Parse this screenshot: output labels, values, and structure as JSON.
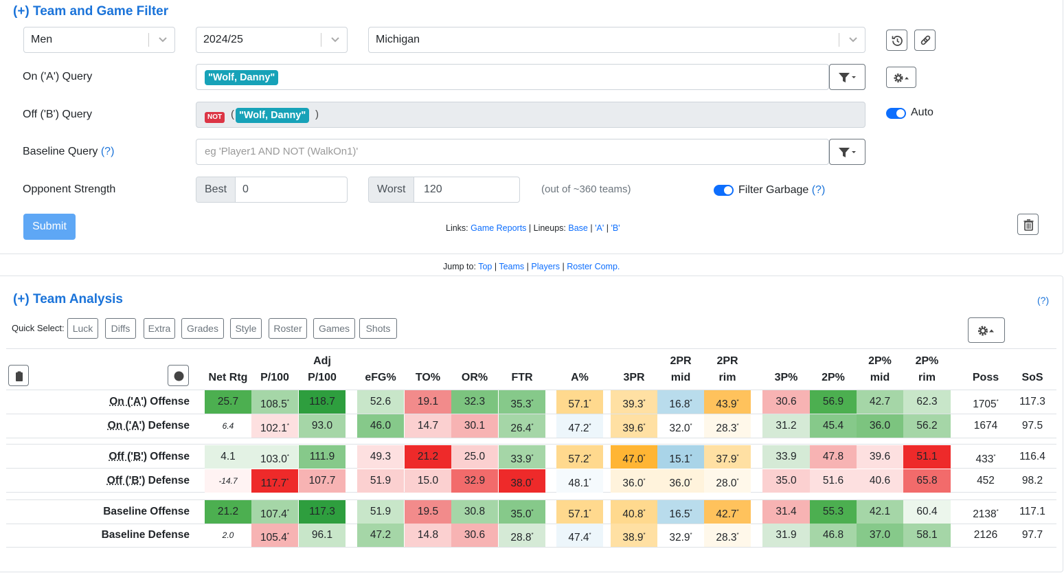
{
  "filter": {
    "title": "(+) Team and Game Filter",
    "gender": "Men",
    "season": "2024/25",
    "team": "Michigan",
    "on_query_label": "On ('A') Query",
    "on_query_chip": "\"Wolf, Danny\"",
    "off_query_label": "Off ('B') Query",
    "off_query_not": "NOT",
    "off_query_open": "(",
    "off_query_chip": "\"Wolf, Danny\"",
    "off_query_close": ")",
    "auto_label": "Auto",
    "baseline_label": "Baseline Query",
    "help": "(?)",
    "baseline_placeholder": "eg 'Player1 AND NOT (WalkOn1)'",
    "opp_label": "Opponent Strength",
    "best_label": "Best",
    "best_value": "0",
    "worst_label": "Worst",
    "worst_value": "120",
    "out_of": "(out of ~360 teams)",
    "filter_garbage": "Filter Garbage",
    "submit": "Submit",
    "links_prefix": "Links:",
    "game_reports": "Game Reports",
    "lineups_prefix": "| Lineups:",
    "base": "Base",
    "a": "'A'",
    "b": "'B'",
    "bar": "|"
  },
  "jump": {
    "prefix": "Jump to:",
    "top": "Top",
    "teams": "Teams",
    "players": "Players",
    "roster": "Roster Comp.",
    "bar": "|"
  },
  "analysis": {
    "title": "(+) Team Analysis",
    "help": "(?)",
    "quick_select": "Quick Select:",
    "buttons": [
      "Luck",
      "Diffs",
      "Extra",
      "Grades",
      "Style",
      "Roster",
      "Games",
      "Shots"
    ]
  },
  "table": {
    "headers": [
      {
        "top": "",
        "bottom": "Net Rtg"
      },
      {
        "top": "",
        "bottom": "P/100"
      },
      {
        "top": "Adj",
        "bottom": "P/100"
      },
      {
        "top": "",
        "bottom": "eFG%"
      },
      {
        "top": "",
        "bottom": "TO%"
      },
      {
        "top": "",
        "bottom": "OR%"
      },
      {
        "top": "",
        "bottom": "FTR"
      },
      {
        "top": "",
        "bottom": "A%"
      },
      {
        "top": "",
        "bottom": "3PR"
      },
      {
        "top": "2PR",
        "bottom": "mid"
      },
      {
        "top": "2PR",
        "bottom": "rim"
      },
      {
        "top": "",
        "bottom": "3P%"
      },
      {
        "top": "",
        "bottom": "2P%"
      },
      {
        "top": "2P%",
        "bottom": "mid"
      },
      {
        "top": "2P%",
        "bottom": "rim"
      },
      {
        "top": "",
        "bottom": "Poss"
      },
      {
        "top": "",
        "bottom": "SoS"
      }
    ],
    "rows": [
      {
        "label_pre": "",
        "label_u": "On ('A')",
        "label_post": " Offense",
        "cells": [
          {
            "v": "25.7",
            "c": "#4caf50"
          },
          {
            "v": "108.5",
            "s": "*",
            "c": "#a5d6a7"
          },
          {
            "v": "118.7",
            "c": "#2e9e3e"
          },
          {
            "v": "52.6",
            "c": "#c8e6c9"
          },
          {
            "v": "19.1",
            "c": "#f28b8b"
          },
          {
            "v": "32.3",
            "c": "#7cc47f"
          },
          {
            "v": "35.3",
            "s": "*",
            "c": "#86c98a"
          },
          {
            "v": "57.1",
            "s": "*",
            "c": "#ffd98e"
          },
          {
            "v": "39.3",
            "s": "*",
            "c": "#ffe0a3"
          },
          {
            "v": "16.8",
            "s": "*",
            "c": "#b9dcec"
          },
          {
            "v": "43.9",
            "s": "*",
            "c": "#ffc25c"
          },
          {
            "v": "30.6",
            "c": "#f7b3b3"
          },
          {
            "v": "56.9",
            "c": "#4caf50"
          },
          {
            "v": "42.7",
            "c": "#a5d6a7"
          },
          {
            "v": "62.3",
            "c": "#c8e6c9"
          },
          {
            "v": "1705",
            "s": "*",
            "c": ""
          },
          {
            "v": "117.3",
            "c": ""
          }
        ]
      },
      {
        "label_pre": "",
        "label_u": "On ('A')",
        "label_post": " Defense",
        "cells": [
          {
            "v": "6.4",
            "c": "",
            "small": true
          },
          {
            "v": "102.1",
            "s": "*",
            "c": "#fde0e0"
          },
          {
            "v": "93.0",
            "c": "#a5d6a7"
          },
          {
            "v": "46.0",
            "c": "#86c98a"
          },
          {
            "v": "14.7",
            "c": "#fbd0d0"
          },
          {
            "v": "30.1",
            "c": "#f7b3b3"
          },
          {
            "v": "26.4",
            "s": "*",
            "c": "#a5d6a7"
          },
          {
            "v": "47.2",
            "s": "*",
            "c": "#edf6fb"
          },
          {
            "v": "39.6",
            "s": "*",
            "c": "#ffe0a3"
          },
          {
            "v": "32.0",
            "s": "*",
            "c": ""
          },
          {
            "v": "28.3",
            "s": "*",
            "c": "#fff8ea"
          },
          {
            "v": "31.2",
            "c": "#d5ead6"
          },
          {
            "v": "45.4",
            "c": "#86c98a"
          },
          {
            "v": "36.0",
            "c": "#7cc47f"
          },
          {
            "v": "56.2",
            "c": "#a5d6a7"
          },
          {
            "v": "1674",
            "c": ""
          },
          {
            "v": "97.5",
            "c": ""
          }
        ]
      },
      {
        "label_pre": "",
        "label_u": "Off ('B')",
        "label_post": " Offense",
        "cells": [
          {
            "v": "4.1",
            "c": "#e3f2e4"
          },
          {
            "v": "103.0",
            "s": "*",
            "c": "#e3f2e4"
          },
          {
            "v": "111.9",
            "c": "#86c98a"
          },
          {
            "v": "49.3",
            "c": "#fde0e0"
          },
          {
            "v": "21.2",
            "c": "#ee2a2a"
          },
          {
            "v": "25.0",
            "c": "#fbd0d0"
          },
          {
            "v": "33.9",
            "s": "*",
            "c": "#a5d6a7"
          },
          {
            "v": "57.2",
            "s": "*",
            "c": "#ffd98e"
          },
          {
            "v": "47.0",
            "s": "*",
            "c": "#ffb534"
          },
          {
            "v": "15.1",
            "s": "*",
            "c": "#a9d4e8"
          },
          {
            "v": "37.9",
            "s": "*",
            "c": "#ffe0a3"
          },
          {
            "v": "33.9",
            "c": "#d5ead6"
          },
          {
            "v": "47.8",
            "c": "#f7b3b3"
          },
          {
            "v": "39.6",
            "c": "#fde0e0"
          },
          {
            "v": "51.1",
            "c": "#ee2a2a"
          },
          {
            "v": "433",
            "s": "*",
            "c": ""
          },
          {
            "v": "116.4",
            "c": ""
          }
        ]
      },
      {
        "label_pre": "",
        "label_u": "Off ('B')",
        "label_post": " Defense",
        "cells": [
          {
            "v": "-14.7",
            "c": "#fff3f3",
            "small": true
          },
          {
            "v": "117.7",
            "s": "*",
            "c": "#ee2a2a"
          },
          {
            "v": "107.7",
            "c": "#f7b3b3"
          },
          {
            "v": "51.9",
            "c": "#fbd0d0"
          },
          {
            "v": "15.0",
            "c": "#fbd0d0"
          },
          {
            "v": "32.9",
            "c": "#f26b6b"
          },
          {
            "v": "38.0",
            "s": "*",
            "c": "#ee2a2a"
          },
          {
            "v": "48.1",
            "s": "*",
            "c": "#f5fafd"
          },
          {
            "v": "36.0",
            "s": "*",
            "c": "#fff3dc"
          },
          {
            "v": "36.0",
            "s": "*",
            "c": "#fff3dc"
          },
          {
            "v": "28.0",
            "s": "*",
            "c": "#fff8ea"
          },
          {
            "v": "35.0",
            "c": "#fbd0d0"
          },
          {
            "v": "51.6",
            "c": "#fde0e0"
          },
          {
            "v": "40.6",
            "c": "#fde0e0"
          },
          {
            "v": "65.8",
            "c": "#f26b6b"
          },
          {
            "v": "452",
            "c": ""
          },
          {
            "v": "98.2",
            "c": ""
          }
        ]
      },
      {
        "label_pre": "Baseline",
        "label_u": "",
        "label_post": " Offense",
        "cells": [
          {
            "v": "21.2",
            "c": "#4caf50"
          },
          {
            "v": "107.4",
            "s": "*",
            "c": "#a5d6a7"
          },
          {
            "v": "117.3",
            "c": "#2e9e3e"
          },
          {
            "v": "51.9",
            "c": "#c8e6c9"
          },
          {
            "v": "19.5",
            "c": "#f28b8b"
          },
          {
            "v": "30.8",
            "c": "#a5d6a7"
          },
          {
            "v": "35.0",
            "s": "*",
            "c": "#86c98a"
          },
          {
            "v": "57.1",
            "s": "*",
            "c": "#ffd98e"
          },
          {
            "v": "40.8",
            "s": "*",
            "c": "#ffd98e"
          },
          {
            "v": "16.5",
            "s": "*",
            "c": "#b9dcec"
          },
          {
            "v": "42.7",
            "s": "*",
            "c": "#ffc25c"
          },
          {
            "v": "31.4",
            "c": "#f7b3b3"
          },
          {
            "v": "55.3",
            "c": "#4caf50"
          },
          {
            "v": "42.1",
            "c": "#a5d6a7"
          },
          {
            "v": "60.4",
            "c": "#ecf6ec"
          },
          {
            "v": "2138",
            "s": "*",
            "c": ""
          },
          {
            "v": "117.1",
            "c": ""
          }
        ]
      },
      {
        "label_pre": "Baseline",
        "label_u": "",
        "label_post": " Defense",
        "cells": [
          {
            "v": "2.0",
            "c": "",
            "small": true
          },
          {
            "v": "105.4",
            "s": "*",
            "c": "#f7b3b3"
          },
          {
            "v": "96.1",
            "c": "#c8e6c9"
          },
          {
            "v": "47.2",
            "c": "#a5d6a7"
          },
          {
            "v": "14.8",
            "c": "#fbd0d0"
          },
          {
            "v": "30.6",
            "c": "#f7b3b3"
          },
          {
            "v": "28.8",
            "s": "*",
            "c": "#d5ead6"
          },
          {
            "v": "47.4",
            "s": "*",
            "c": "#edf6fb"
          },
          {
            "v": "38.9",
            "s": "*",
            "c": "#ffe0a3"
          },
          {
            "v": "32.9",
            "s": "*",
            "c": ""
          },
          {
            "v": "28.3",
            "s": "*",
            "c": "#fff8ea"
          },
          {
            "v": "31.9",
            "c": "#d5ead6"
          },
          {
            "v": "46.8",
            "c": "#a5d6a7"
          },
          {
            "v": "37.0",
            "c": "#86c98a"
          },
          {
            "v": "58.1",
            "c": "#a5d6a7"
          },
          {
            "v": "2126",
            "c": ""
          },
          {
            "v": "97.7",
            "c": ""
          }
        ]
      }
    ]
  }
}
